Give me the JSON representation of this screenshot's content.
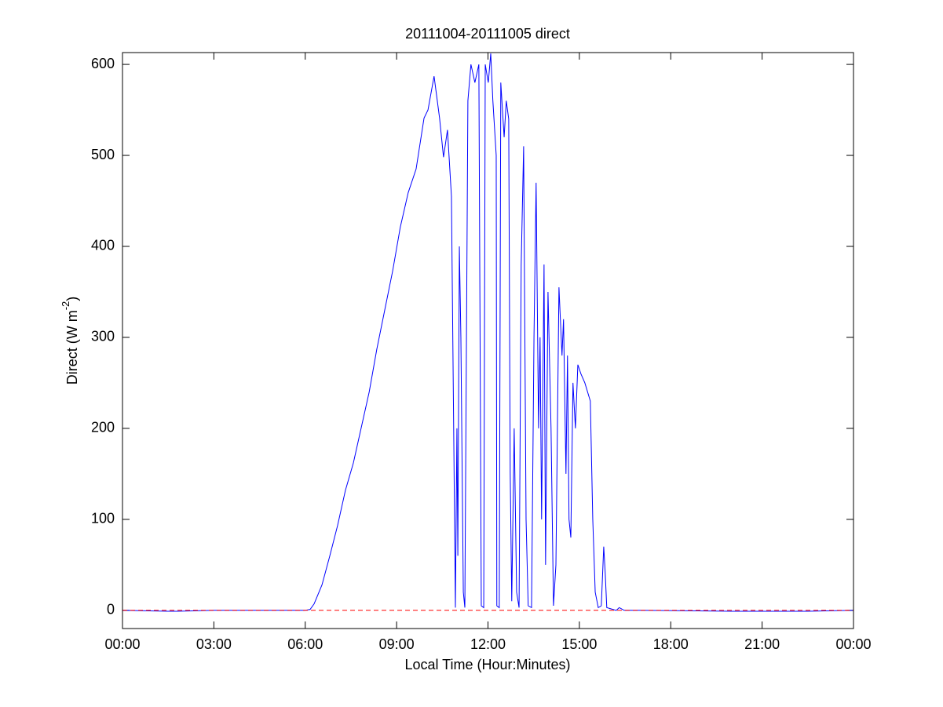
{
  "chart_data": {
    "type": "line",
    "title": "20111004-20111005 direct",
    "x_label": "Local Time (Hour:Minutes)",
    "y_label": {
      "text": "Direct (W m",
      "superscript": "-2",
      "suffix": ")"
    },
    "xlim": [
      0,
      24
    ],
    "ylim": [
      -20,
      613
    ],
    "xticks": [
      {
        "value": 0,
        "label": "00:00"
      },
      {
        "value": 3,
        "label": "03:00"
      },
      {
        "value": 6,
        "label": "06:00"
      },
      {
        "value": 9,
        "label": "09:00"
      },
      {
        "value": 12,
        "label": "12:00"
      },
      {
        "value": 15,
        "label": "15:00"
      },
      {
        "value": 18,
        "label": "18:00"
      },
      {
        "value": 21,
        "label": "21:00"
      },
      {
        "value": 24,
        "label": "00:00"
      }
    ],
    "yticks": [
      0,
      100,
      200,
      300,
      400,
      500,
      600
    ],
    "grid": false,
    "reference_line": {
      "value": 0,
      "color": "#ff0000",
      "dashed": true
    },
    "x": [
      0,
      1.5,
      1.8,
      3,
      6,
      6.16,
      6.29,
      6.55,
      6.8,
      7.06,
      7.32,
      7.58,
      7.84,
      8.1,
      8.35,
      8.61,
      8.87,
      9.12,
      9.38,
      9.64,
      9.9,
      10.03,
      10.23,
      10.41,
      10.54,
      10.67,
      10.8,
      10.93,
      10.98,
      11.01,
      11.06,
      11.11,
      11.19,
      11.24,
      11.34,
      11.44,
      11.57,
      11.7,
      11.78,
      11.86,
      11.91,
      12.01,
      12.09,
      12.16,
      12.27,
      12.29,
      12.37,
      12.42,
      12.53,
      12.6,
      12.68,
      12.73,
      12.78,
      12.86,
      12.94,
      13.02,
      13.09,
      13.17,
      13.25,
      13.32,
      13.43,
      13.51,
      13.58,
      13.66,
      13.71,
      13.76,
      13.84,
      13.89,
      13.97,
      14.07,
      14.15,
      14.23,
      14.33,
      14.43,
      14.48,
      14.56,
      14.61,
      14.66,
      14.72,
      14.79,
      14.87,
      14.95,
      15.05,
      15.18,
      15.36,
      15.44,
      15.52,
      15.62,
      15.72,
      15.8,
      15.85,
      15.9,
      16.21,
      16.31,
      16.47,
      17,
      20,
      22.5,
      24
    ],
    "series": [
      {
        "color": "#0000ff",
        "values": [
          0,
          -1,
          -1,
          0,
          0,
          1,
          7,
          28,
          59,
          93,
          132,
          162,
          201,
          240,
          287,
          330,
          373,
          421,
          459,
          485,
          541,
          550,
          587,
          541,
          498,
          528,
          455,
          3,
          200,
          60,
          400,
          300,
          20,
          3,
          560,
          600,
          580,
          600,
          5,
          3,
          600,
          580,
          612,
          560,
          500,
          5,
          3,
          580,
          520,
          560,
          540,
          150,
          10,
          200,
          20,
          3,
          380,
          510,
          100,
          5,
          3,
          300,
          470,
          200,
          300,
          100,
          380,
          50,
          350,
          200,
          5,
          50,
          355,
          280,
          320,
          150,
          280,
          100,
          80,
          250,
          200,
          270,
          260,
          250,
          230,
          100,
          20,
          3,
          5,
          70,
          40,
          3,
          0,
          3,
          0,
          0,
          -1,
          -1,
          0
        ]
      }
    ]
  }
}
